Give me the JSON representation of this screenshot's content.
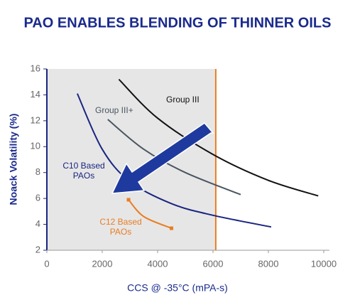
{
  "chart_data": {
    "type": "line",
    "title": "PAO ENABLES BLENDING OF THINNER OILS",
    "x_label": "CCS @ -35°C (mPA-s)",
    "y_label": "Noack Volatility (%)",
    "xlim": [
      0,
      10000
    ],
    "xticks": [
      0,
      2000,
      4000,
      6000,
      8000,
      10000
    ],
    "ylim": [
      2,
      16
    ],
    "yticks": [
      2,
      4,
      6,
      8,
      10,
      12,
      14,
      16
    ],
    "reference_line": {
      "x": 6100,
      "color": "#e87d22",
      "shade": "#e6e6e6"
    },
    "series": [
      {
        "name": [
          "Group III"
        ],
        "color": "#111111",
        "x": [
          2600,
          4000,
          6000,
          8000,
          9800
        ],
        "values": [
          15.2,
          12.2,
          9.4,
          7.4,
          6.2
        ]
      },
      {
        "name": [
          "Group III+"
        ],
        "color": "#4a5560",
        "x": [
          2200,
          3500,
          5000,
          7000
        ],
        "values": [
          12.1,
          9.8,
          8.0,
          6.3
        ]
      },
      {
        "name": [
          "C10 Based",
          "PAOs"
        ],
        "color": "#1a2580",
        "x": [
          1100,
          2000,
          3000,
          4500,
          6000,
          8100
        ],
        "values": [
          14.1,
          9.8,
          7.3,
          5.6,
          4.7,
          3.8
        ]
      },
      {
        "name": [
          "C12 Based",
          "PAOs"
        ],
        "color": "#e87d22",
        "x": [
          2950,
          3500,
          4500
        ],
        "values": [
          5.9,
          4.6,
          3.7
        ],
        "end_markers": true
      }
    ]
  }
}
